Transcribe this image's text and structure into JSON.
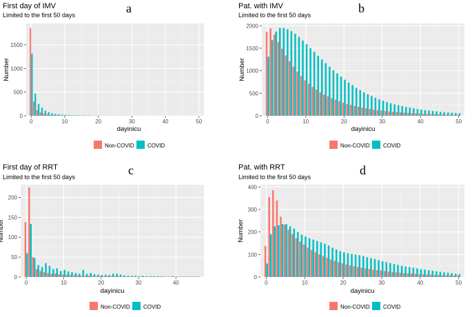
{
  "chart_data": [
    {
      "type": "bar",
      "letter": "a",
      "title": "First day of IMV",
      "subtitle": "Limited to the first 50 days",
      "xlabel": "dayinicu",
      "ylabel": "Number",
      "xlim": [
        -1.5,
        51.5
      ],
      "ylim": [
        0,
        1950
      ],
      "xticks": [
        0,
        10,
        20,
        30,
        40,
        50
      ],
      "yticks": [
        0,
        500,
        1000,
        1500
      ],
      "legend": [
        "Non-COVID",
        "COVID"
      ],
      "x": [
        0,
        1,
        2,
        3,
        4,
        5,
        6,
        7,
        8,
        9,
        10,
        11,
        12,
        13,
        14,
        15,
        16,
        17,
        18,
        19,
        20,
        21,
        22,
        23,
        24,
        25,
        26,
        27,
        28,
        29,
        30,
        31,
        32,
        33,
        34,
        35,
        36,
        37,
        38,
        39,
        40,
        41,
        42,
        43,
        44,
        45,
        46,
        47,
        48,
        49,
        50
      ],
      "series": [
        {
          "name": "Non-COVID",
          "color": "#F8766D",
          "values": [
            1850,
            300,
            120,
            70,
            45,
            30,
            20,
            15,
            12,
            10,
            8,
            7,
            6,
            5,
            5,
            4,
            4,
            3,
            3,
            3,
            2,
            2,
            2,
            2,
            2,
            1,
            1,
            1,
            1,
            1,
            1,
            1,
            1,
            1,
            1,
            1,
            1,
            1,
            1,
            1,
            1,
            1,
            1,
            1,
            1,
            1,
            1,
            1,
            1,
            1,
            1
          ]
        },
        {
          "name": "COVID",
          "color": "#00BFC4",
          "values": [
            1310,
            470,
            250,
            170,
            110,
            80,
            55,
            40,
            32,
            25,
            20,
            16,
            13,
            11,
            9,
            8,
            7,
            6,
            5,
            5,
            4,
            4,
            3,
            3,
            3,
            2,
            2,
            2,
            2,
            2,
            2,
            2,
            1,
            1,
            1,
            1,
            1,
            1,
            1,
            1,
            1,
            1,
            1,
            1,
            1,
            1,
            1,
            1,
            1,
            1,
            1
          ]
        }
      ]
    },
    {
      "type": "bar",
      "letter": "b",
      "title": "Pat. with IMV",
      "subtitle": "Limited to the first 50 days",
      "xlabel": "dayinicu",
      "ylabel": "Number",
      "xlim": [
        -1.5,
        51.5
      ],
      "ylim": [
        0,
        2050
      ],
      "xticks": [
        0,
        10,
        20,
        30,
        40,
        50
      ],
      "yticks": [
        0,
        500,
        1000,
        1500,
        2000
      ],
      "legend": [
        "Non-COVID",
        "COVID"
      ],
      "x": [
        0,
        1,
        2,
        3,
        4,
        5,
        6,
        7,
        8,
        9,
        10,
        11,
        12,
        13,
        14,
        15,
        16,
        17,
        18,
        19,
        20,
        21,
        22,
        23,
        24,
        25,
        26,
        27,
        28,
        29,
        30,
        31,
        32,
        33,
        34,
        35,
        36,
        37,
        38,
        39,
        40,
        41,
        42,
        43,
        44,
        45,
        46,
        47,
        48,
        49,
        50
      ],
      "series": [
        {
          "name": "Non-COVID",
          "color": "#F8766D",
          "values": [
            1860,
            1940,
            1800,
            1640,
            1490,
            1340,
            1210,
            1090,
            980,
            880,
            790,
            710,
            640,
            580,
            520,
            470,
            430,
            390,
            355,
            320,
            290,
            265,
            240,
            220,
            200,
            180,
            165,
            150,
            135,
            125,
            115,
            105,
            95,
            88,
            80,
            73,
            67,
            61,
            56,
            51,
            47,
            43,
            39,
            36,
            33,
            30,
            28,
            25,
            23,
            21,
            20
          ]
        },
        {
          "name": "COVID",
          "color": "#00BFC4",
          "values": [
            1310,
            1680,
            1870,
            1950,
            1950,
            1920,
            1880,
            1820,
            1750,
            1670,
            1590,
            1500,
            1420,
            1330,
            1250,
            1170,
            1090,
            1010,
            940,
            870,
            800,
            740,
            680,
            620,
            570,
            520,
            480,
            440,
            400,
            365,
            335,
            305,
            280,
            255,
            235,
            215,
            195,
            180,
            165,
            150,
            138,
            126,
            115,
            105,
            96,
            88,
            80,
            73,
            67,
            61,
            56
          ]
        }
      ]
    },
    {
      "type": "bar",
      "letter": "c",
      "title": "First day of RRT",
      "subtitle": "Limited to the first 50 days",
      "xlabel": "dayinicu",
      "ylabel": "Number",
      "xlim": [
        -1.5,
        47.5
      ],
      "ylim": [
        0,
        232
      ],
      "xticks": [
        0,
        10,
        20,
        30,
        40
      ],
      "yticks": [
        0,
        50,
        100,
        150,
        200
      ],
      "legend": [
        "Non-COVID",
        "COVID"
      ],
      "x": [
        0,
        1,
        2,
        3,
        4,
        5,
        6,
        7,
        8,
        9,
        10,
        11,
        12,
        13,
        14,
        15,
        16,
        17,
        18,
        19,
        20,
        21,
        22,
        23,
        24,
        25,
        26,
        27,
        28,
        29,
        30,
        31,
        32,
        33,
        34,
        35,
        36,
        37,
        38,
        39,
        40,
        41,
        42,
        43,
        44,
        45,
        46
      ],
      "series": [
        {
          "name": "Non-COVID",
          "color": "#F8766D",
          "values": [
            138,
            225,
            50,
            20,
            15,
            12,
            10,
            8,
            9,
            7,
            6,
            6,
            5,
            4,
            4,
            3,
            3,
            3,
            3,
            2,
            2,
            2,
            2,
            2,
            2,
            2,
            1,
            1,
            1,
            1,
            1,
            1,
            1,
            1,
            1,
            1,
            1,
            1,
            1,
            1,
            1,
            1,
            1,
            1,
            1,
            1,
            1
          ]
        },
        {
          "name": "COVID",
          "color": "#00BFC4",
          "values": [
            60,
            133,
            48,
            30,
            25,
            35,
            28,
            20,
            22,
            15,
            18,
            14,
            12,
            10,
            8,
            18,
            8,
            10,
            7,
            6,
            5,
            6,
            5,
            8,
            8,
            6,
            4,
            3,
            3,
            3,
            2,
            3,
            2,
            2,
            2,
            2,
            2,
            1,
            1,
            2,
            1,
            1,
            1,
            1,
            1,
            1,
            1
          ]
        }
      ]
    },
    {
      "type": "bar",
      "letter": "d",
      "title": "Pat. with RRT",
      "subtitle": "Limited to the first 50 days",
      "xlabel": "dayinicu",
      "ylabel": "Number",
      "xlim": [
        -1.5,
        51.5
      ],
      "ylim": [
        0,
        410
      ],
      "xticks": [
        0,
        10,
        20,
        30,
        40,
        50
      ],
      "yticks": [
        0,
        100,
        200,
        300,
        400
      ],
      "legend": [
        "Non-COVID",
        "COVID"
      ],
      "x": [
        0,
        1,
        2,
        3,
        4,
        5,
        6,
        7,
        8,
        9,
        10,
        11,
        12,
        13,
        14,
        15,
        16,
        17,
        18,
        19,
        20,
        21,
        22,
        23,
        24,
        25,
        26,
        27,
        28,
        29,
        30,
        31,
        32,
        33,
        34,
        35,
        36,
        37,
        38,
        39,
        40,
        41,
        42,
        43,
        44,
        45,
        46,
        47,
        48,
        49,
        50
      ],
      "series": [
        {
          "name": "Non-COVID",
          "color": "#F8766D",
          "values": [
            138,
            355,
            385,
            340,
            268,
            232,
            210,
            190,
            172,
            157,
            144,
            131,
            120,
            110,
            101,
            93,
            85,
            78,
            72,
            66,
            61,
            56,
            52,
            48,
            44,
            41,
            38,
            35,
            32,
            30,
            28,
            26,
            24,
            22,
            20,
            19,
            17,
            16,
            15,
            14,
            13,
            12,
            11,
            10,
            9,
            9,
            8,
            7,
            7,
            6,
            6
          ]
        },
        {
          "name": "COVID",
          "color": "#00BFC4",
          "values": [
            60,
            190,
            225,
            230,
            235,
            235,
            225,
            215,
            200,
            188,
            180,
            172,
            166,
            160,
            154,
            148,
            140,
            130,
            122,
            115,
            110,
            106,
            102,
            100,
            97,
            93,
            88,
            84,
            80,
            75,
            70,
            66,
            62,
            58,
            54,
            50,
            47,
            44,
            41,
            38,
            35,
            33,
            30,
            28,
            25,
            23,
            21,
            19,
            17,
            15,
            13
          ]
        }
      ]
    }
  ]
}
